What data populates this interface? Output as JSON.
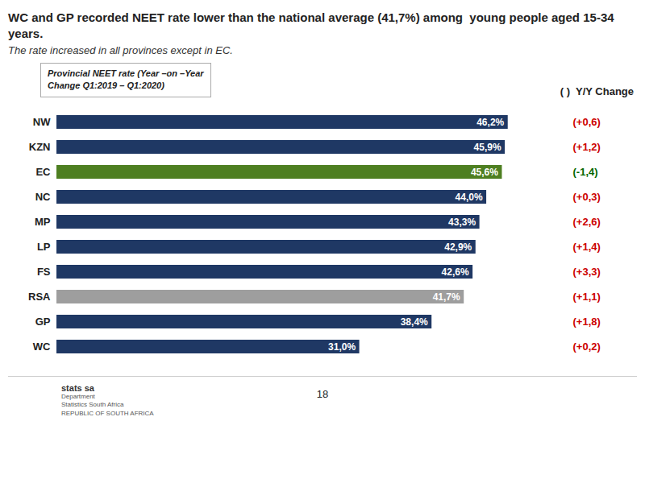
{
  "chart_data": {
    "type": "bar",
    "orientation": "horizontal",
    "title": "WC and GP recorded NEET rate lower than the national average (41,7%) among  young people aged 15-34 years.",
    "subtitle": "The rate increased in all provinces except in EC.",
    "annotations": [
      "Provincial NEET rate (Year –on –Year\nChange Q1:2019 – Q1:2020)",
      "( )  Y/Y Change",
      "18",
      "stats sa",
      "Department\nStatistics South Africa\nREPUBLIC OF SOUTH AFRICA"
    ],
    "categories": [
      "NW",
      "KZN",
      "EC",
      "NC",
      "MP",
      "LP",
      "FS",
      "RSA",
      "GP",
      "WC"
    ],
    "values": [
      46.2,
      45.9,
      45.6,
      44.0,
      43.3,
      42.9,
      42.6,
      41.7,
      38.4,
      31.0
    ],
    "value_labels": [
      "46,2%",
      "45,9%",
      "45,6%",
      "44,0%",
      "43,3%",
      "42,9%",
      "42,6%",
      "41,7%",
      "38,4%",
      "31,0%"
    ],
    "data_labels": true,
    "colors": [
      "#1f3864",
      "#1f3864",
      "#4e7f21",
      "#1f3864",
      "#1f3864",
      "#1f3864",
      "#1f3864",
      "#9e9e9e",
      "#1f3864",
      "#1f3864"
    ],
    "changes": [
      0.6,
      1.2,
      -1.4,
      0.3,
      2.6,
      1.4,
      3.3,
      1.1,
      1.8,
      0.2
    ],
    "change_labels": [
      "(+0,6)",
      "(+1,2)",
      "(-1,4)",
      "(+0,3)",
      "(+2,6)",
      "(+1,4)",
      "(+3,3)",
      "(+1,1)",
      "(+1,8)",
      "(+0,2)"
    ],
    "change_colors": [
      "#cc0000",
      "#cc0000",
      "#006600",
      "#cc0000",
      "#cc0000",
      "#cc0000",
      "#cc0000",
      "#cc0000",
      "#cc0000",
      "#cc0000"
    ],
    "xlim": [
      0,
      52
    ],
    "tick_labels": "y",
    "grid": false
  }
}
